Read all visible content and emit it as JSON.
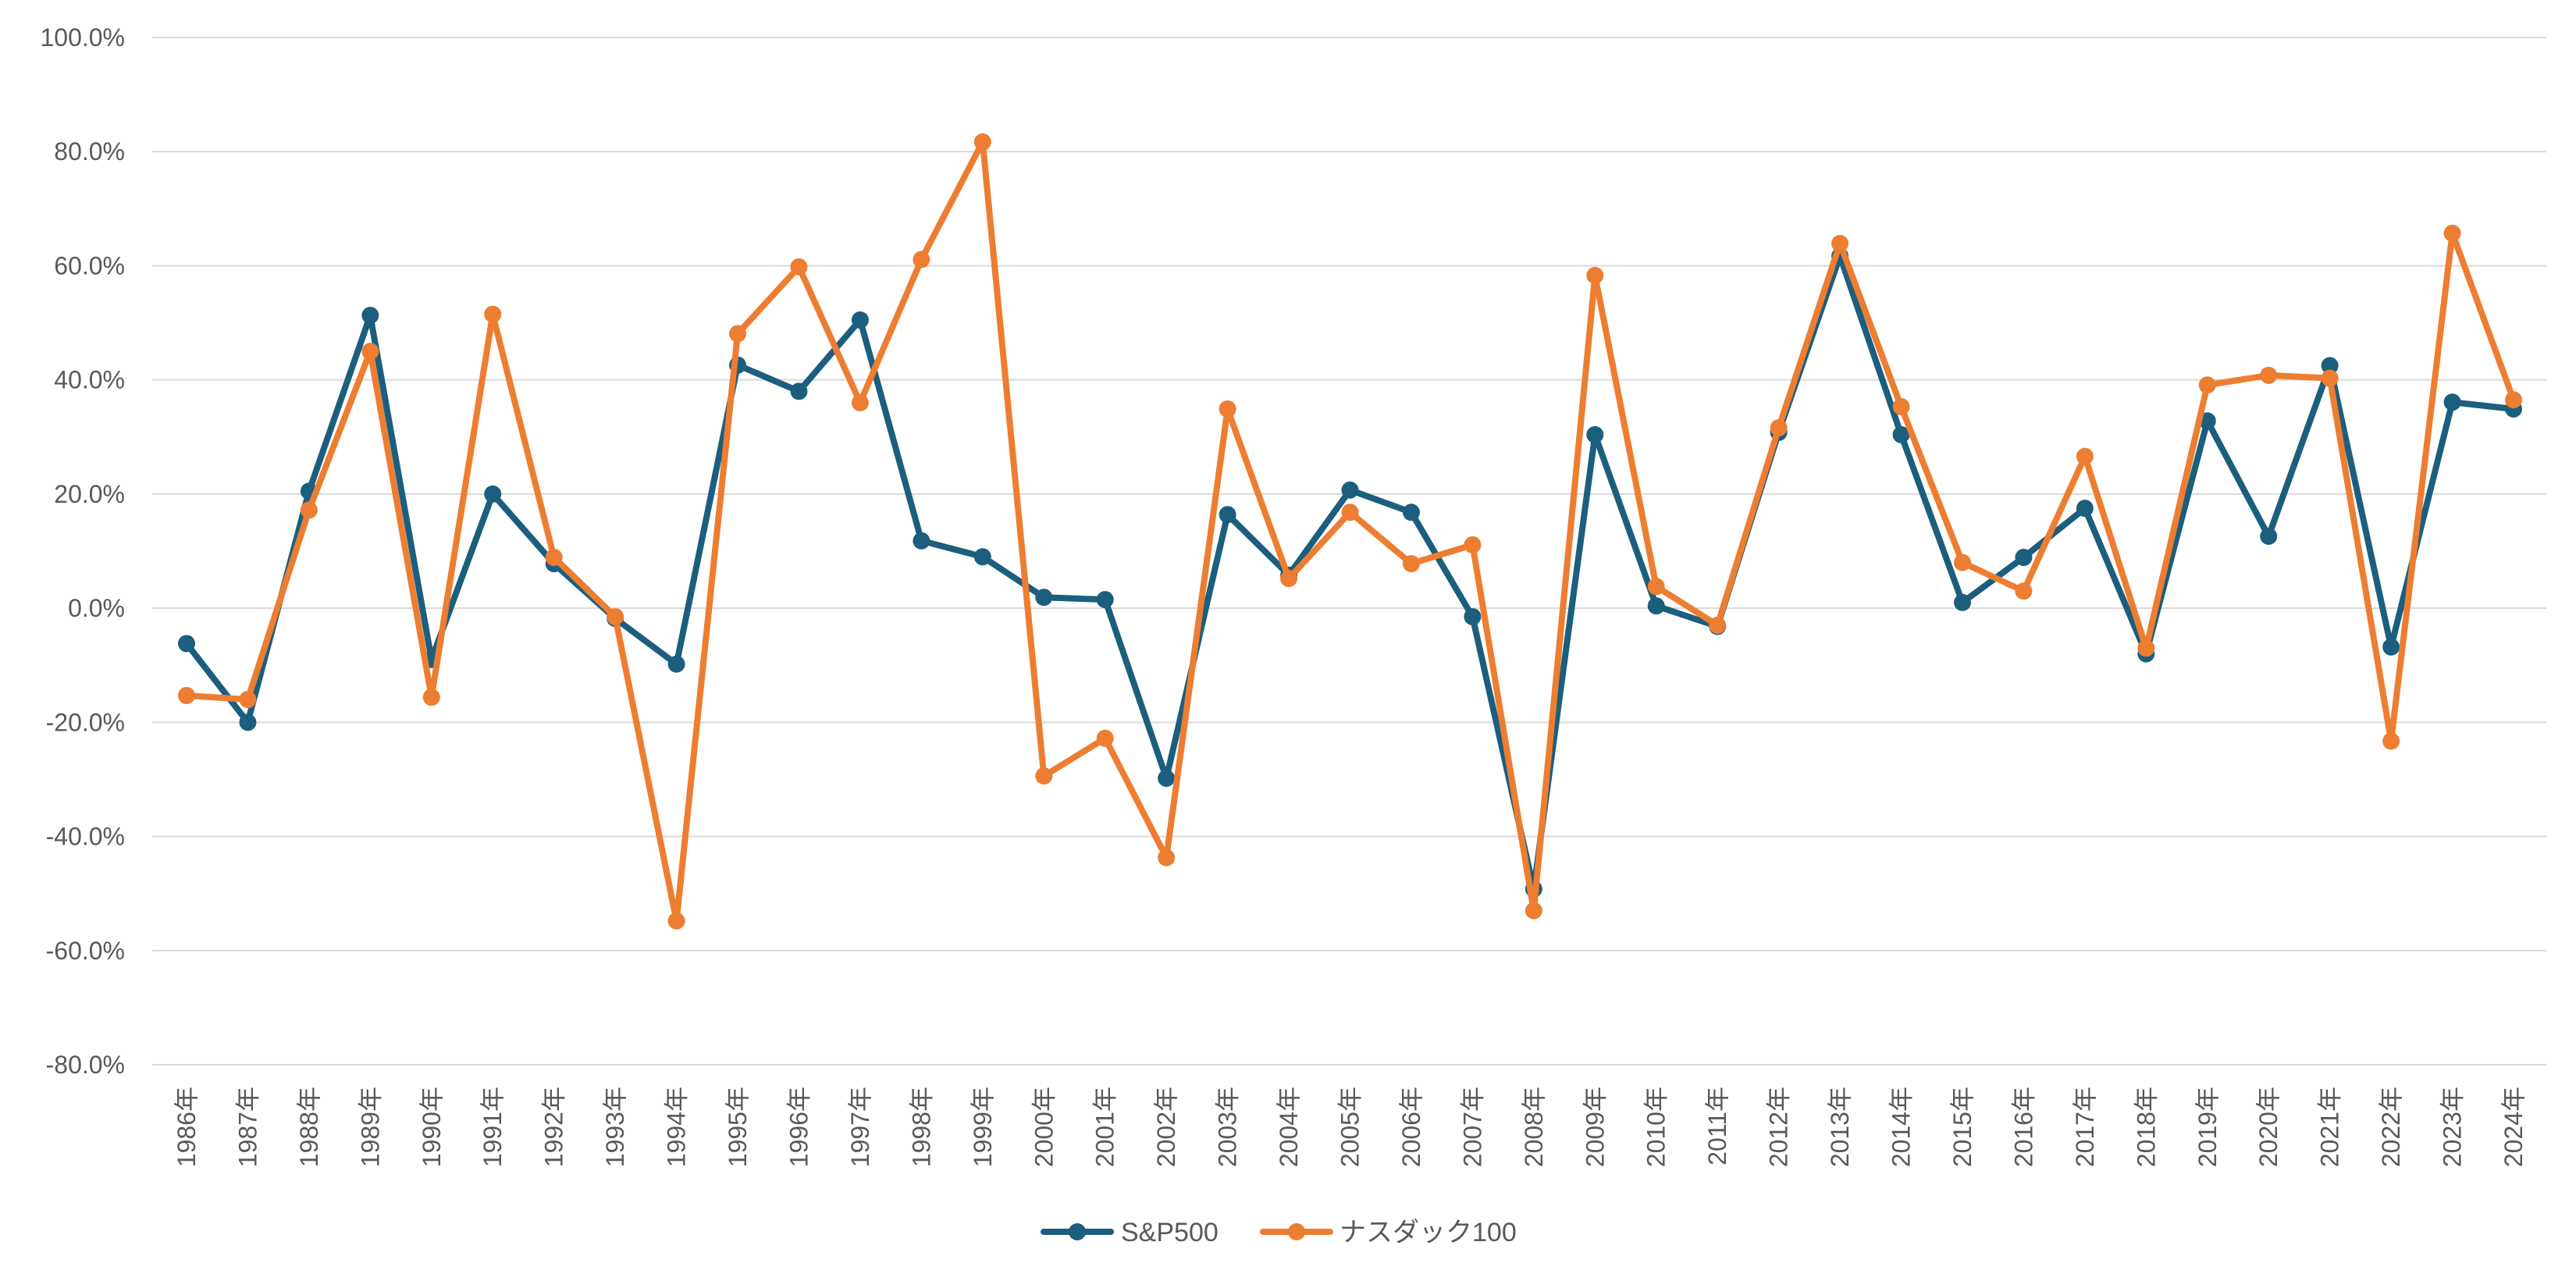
{
  "chart_data": {
    "type": "line",
    "title": "",
    "xlabel": "",
    "ylabel": "",
    "categories": [
      "1986年",
      "1987年",
      "1988年",
      "1989年",
      "1990年",
      "1991年",
      "1992年",
      "1993年",
      "1994年",
      "1995年",
      "1996年",
      "1997年",
      "1998年",
      "1999年",
      "2000年",
      "2001年",
      "2002年",
      "2003年",
      "2004年",
      "2005年",
      "2006年",
      "2007年",
      "2008年",
      "2009年",
      "2010年",
      "2011年",
      "2012年",
      "2013年",
      "2014年",
      "2015年",
      "2016年",
      "2017年",
      "2018年",
      "2019年",
      "2020年",
      "2021年",
      "2022年",
      "2023年",
      "2024年"
    ],
    "series": [
      {
        "name": "S&P500",
        "color": "#1b5e7e",
        "values": [
          -6.2,
          -20.0,
          20.5,
          51.3,
          -9.0,
          20.0,
          7.8,
          -1.8,
          -9.8,
          42.6,
          38.0,
          50.5,
          11.8,
          9.0,
          1.9,
          1.5,
          -29.8,
          16.4,
          5.8,
          20.7,
          16.8,
          -1.5,
          -49.2,
          30.4,
          0.4,
          -3.2,
          30.8,
          61.7,
          30.4,
          1.0,
          8.9,
          17.5,
          -8.0,
          32.8,
          12.6,
          42.5,
          -6.8,
          36.1,
          34.9
        ]
      },
      {
        "name": "ナスダック100",
        "color": "#ed7d31",
        "values": [
          -15.3,
          -16.0,
          17.2,
          45.0,
          -15.6,
          51.5,
          8.9,
          -1.5,
          -54.8,
          48.1,
          59.8,
          36.0,
          61.1,
          81.7,
          -29.4,
          -22.8,
          -43.7,
          34.9,
          5.2,
          16.8,
          7.8,
          11.1,
          -53.0,
          58.3,
          3.8,
          -3.0,
          31.6,
          63.9,
          35.3,
          8.0,
          3.0,
          26.6,
          -7.0,
          39.1,
          40.8,
          40.3,
          -23.3,
          65.7,
          36.5
        ]
      }
    ],
    "ylim": [
      -80,
      100
    ],
    "yticks": [
      -80,
      -60,
      -40,
      -20,
      0,
      20,
      40,
      60,
      80,
      100
    ],
    "ytick_labels": [
      "-80.0%",
      "-60.0%",
      "-40.0%",
      "-20.0%",
      "0.0%",
      "20.0%",
      "40.0%",
      "60.0%",
      "80.0%",
      "100.0%"
    ],
    "grid": true,
    "legend_position": "bottom-center"
  }
}
